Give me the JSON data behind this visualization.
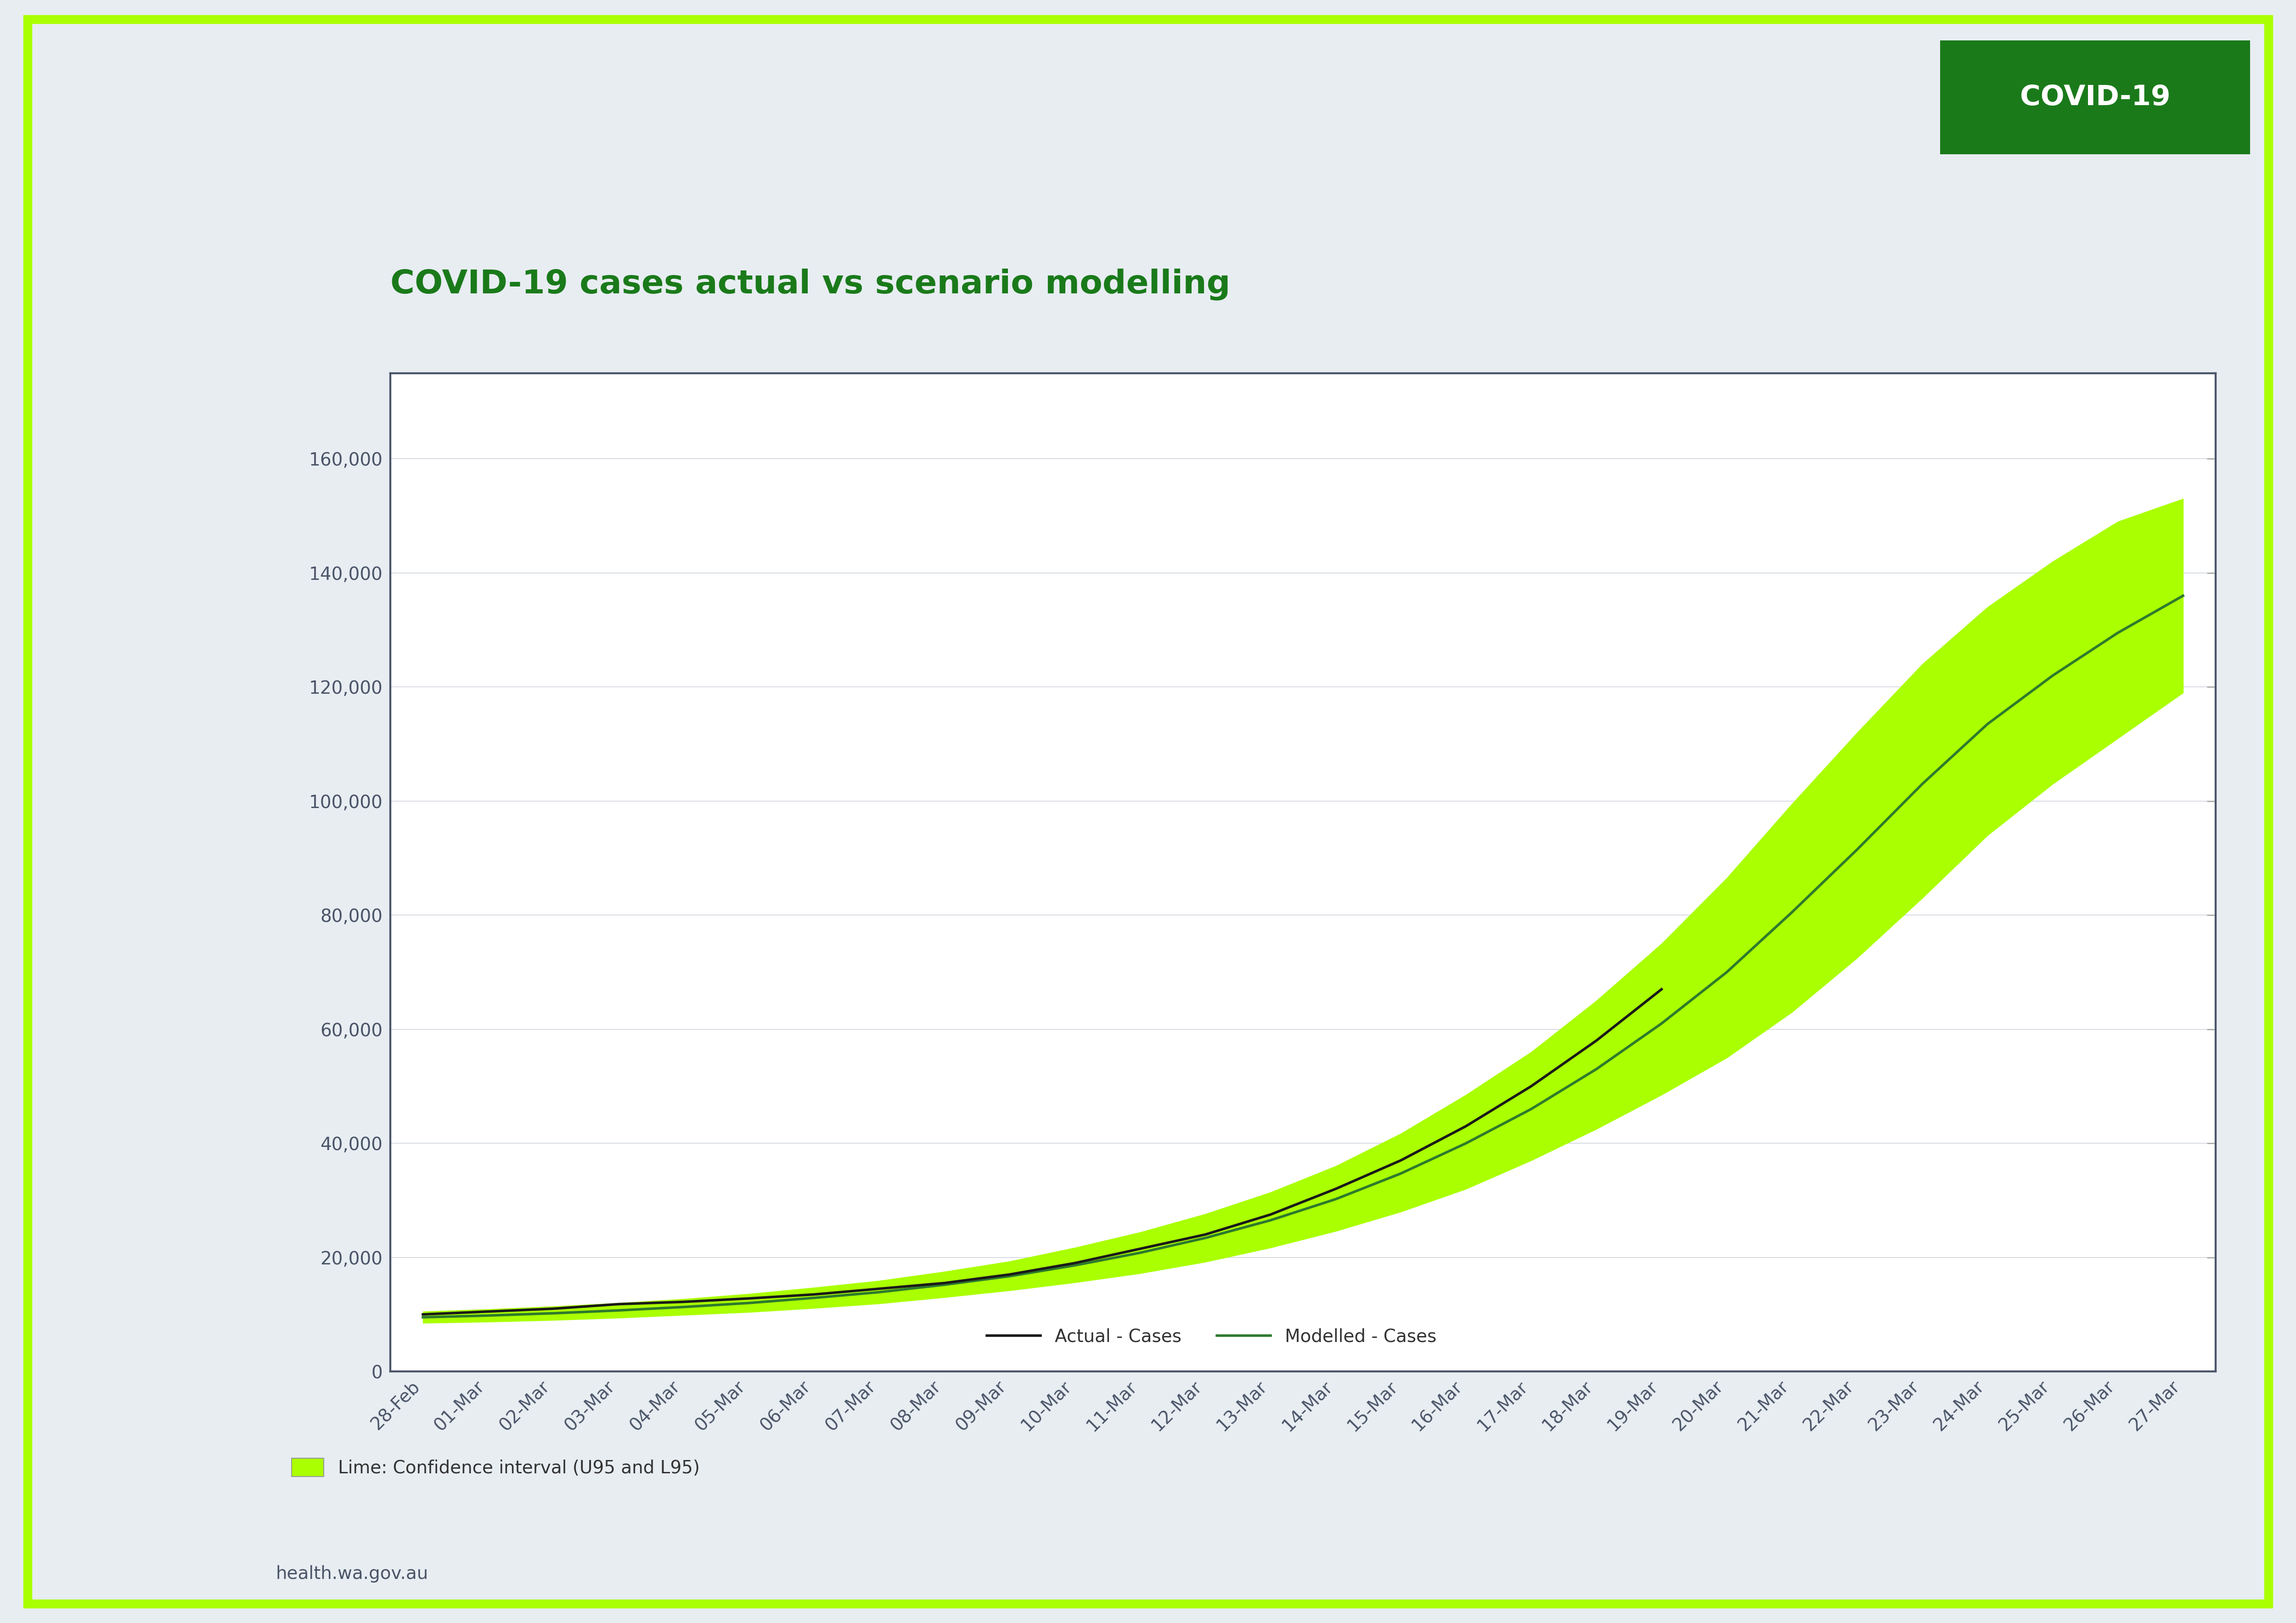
{
  "title": "COVID-19 cases actual vs scenario modelling",
  "title_color": "#1a7a1a",
  "background_color": "#e8edf2",
  "plot_bg_color": "#ffffff",
  "border_color": "#4a5568",
  "lime_border_color": "#aaff00",
  "covid_badge_bg": "#1a7a1a",
  "covid_badge_text": "COVID-19",
  "footer_text": "health.wa.gov.au",
  "legend_note": "Lime: Confidence interval (U95 and L95)",
  "dates": [
    "28-Feb",
    "01-Mar",
    "02-Mar",
    "03-Mar",
    "04-Mar",
    "05-Mar",
    "06-Mar",
    "07-Mar",
    "08-Mar",
    "09-Mar",
    "10-Mar",
    "11-Mar",
    "12-Mar",
    "13-Mar",
    "14-Mar",
    "15-Mar",
    "16-Mar",
    "17-Mar",
    "18-Mar",
    "19-Mar",
    "20-Mar",
    "21-Mar",
    "22-Mar",
    "23-Mar",
    "24-Mar",
    "25-Mar",
    "26-Mar",
    "27-Mar"
  ],
  "actual_cases": [
    10000,
    10500,
    11000,
    11800,
    12200,
    12800,
    13500,
    14500,
    15500,
    17000,
    19000,
    21500,
    24000,
    27500,
    32000,
    37000,
    43000,
    50000,
    58000,
    67000,
    null,
    null,
    null,
    null,
    null,
    null,
    null,
    null
  ],
  "modelled_cases": [
    9500,
    9800,
    10200,
    10700,
    11300,
    12000,
    12900,
    13900,
    15200,
    16700,
    18600,
    20800,
    23400,
    26500,
    30200,
    34700,
    40000,
    46000,
    53000,
    61000,
    70000,
    80500,
    91500,
    103000,
    113500,
    122000,
    129500,
    136000
  ],
  "ci_upper": [
    10500,
    10900,
    11400,
    12000,
    12700,
    13600,
    14700,
    15900,
    17500,
    19300,
    21700,
    24400,
    27600,
    31400,
    36000,
    41700,
    48500,
    56000,
    65000,
    75000,
    86500,
    99500,
    112000,
    124000,
    134000,
    142000,
    149000,
    153000
  ],
  "ci_lower": [
    8500,
    8700,
    9000,
    9400,
    9900,
    10400,
    11100,
    11900,
    13000,
    14200,
    15600,
    17200,
    19200,
    21700,
    24600,
    28000,
    32000,
    37000,
    42500,
    48500,
    55000,
    63000,
    72500,
    83000,
    94000,
    103000,
    111000,
    119000
  ],
  "ylim": [
    0,
    175000
  ],
  "yticks": [
    0,
    20000,
    40000,
    60000,
    80000,
    100000,
    120000,
    140000,
    160000
  ],
  "actual_color": "#1a1a1a",
  "modelled_color": "#2d7a2d",
  "ci_color": "#aaff00",
  "title_fontsize": 52,
  "tick_fontsize": 28,
  "legend_fontsize": 28,
  "badge_fontsize": 44,
  "footer_fontsize": 28
}
